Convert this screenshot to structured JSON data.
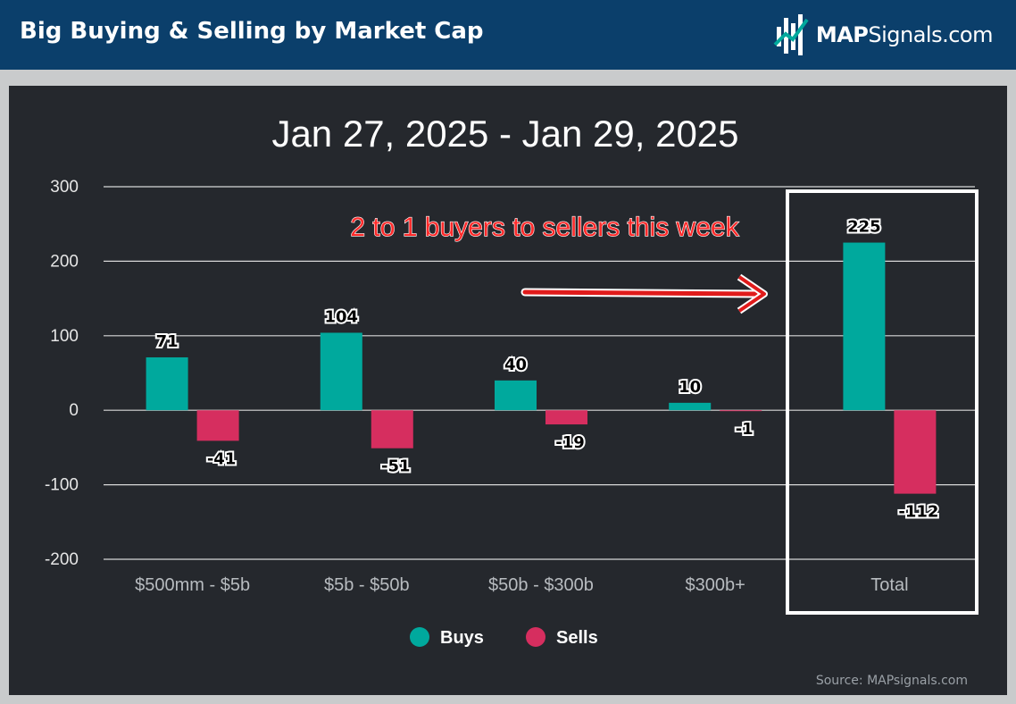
{
  "header": {
    "title": "Big Buying & Selling by Market Cap",
    "logo_bold": "MAP",
    "logo_rest": "Signals.com"
  },
  "chart_data": {
    "type": "bar",
    "title": "Jan 27, 2025 - Jan 29, 2025",
    "categories": [
      "$500mm - $5b",
      "$5b - $50b",
      "$50b - $300b",
      "$300b+",
      "Total"
    ],
    "series": [
      {
        "name": "Buys",
        "values": [
          71,
          104,
          40,
          10,
          225
        ],
        "color": "#00a99d"
      },
      {
        "name": "Sells",
        "values": [
          -41,
          -51,
          -19,
          -1,
          -112
        ],
        "color": "#d62e5f"
      }
    ],
    "ylim": [
      -200,
      300
    ],
    "yticks": [
      300,
      200,
      100,
      0,
      -100,
      -200
    ],
    "grid": true,
    "legend": "bottom",
    "annotation": "2 to 1 buyers to sellers this week",
    "highlight_category": "Total",
    "annotation_color": "#ff2a2a"
  },
  "source": "Source: MAPsignals.com"
}
